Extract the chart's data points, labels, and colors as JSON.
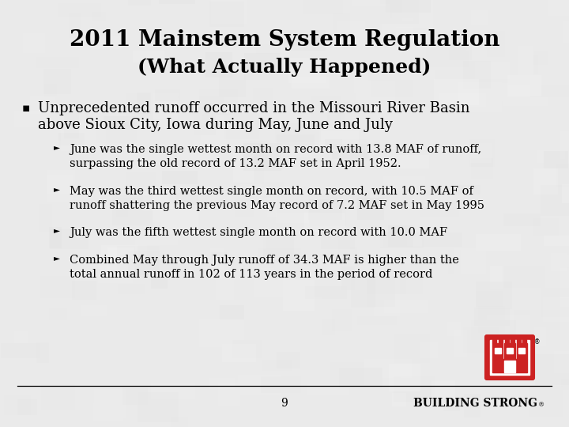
{
  "title_line1": "2011 Mainstem System Regulation",
  "title_line2": "(What Actually Happened)",
  "bullet_main_line1": "Unprecedented runoff occurred in the Missouri River Basin",
  "bullet_main_line2": "above Sioux City, Iowa during May, June and July",
  "sub_bullets": [
    "June was the single wettest month on record with 13.8 MAF of runoff,\nsurpassing the old record of 13.2 MAF set in April 1952.",
    "May was the third wettest single month on record, with 10.5 MAF of\nrunoff shattering the previous May record of 7.2 MAF set in May 1995",
    "July was the fifth wettest single month on record with 10.0 MAF",
    "Combined May through July runoff of 34.3 MAF is higher than the\ntotal annual runoff in 102 of 113 years in the period of record"
  ],
  "page_number": "9",
  "footer_text": "BUILDING STRONG",
  "footer_reg": "®",
  "bg_color": "#d4d4d4",
  "panel_color": "#e8e8e8",
  "text_color": "#000000",
  "title_font_size": 20,
  "subtitle_font_size": 18,
  "main_bullet_font_size": 13,
  "sub_bullet_font_size": 10.5,
  "footer_font_size": 10,
  "page_font_size": 10,
  "logo_red": "#cc2222",
  "logo_border": "#cc2222"
}
